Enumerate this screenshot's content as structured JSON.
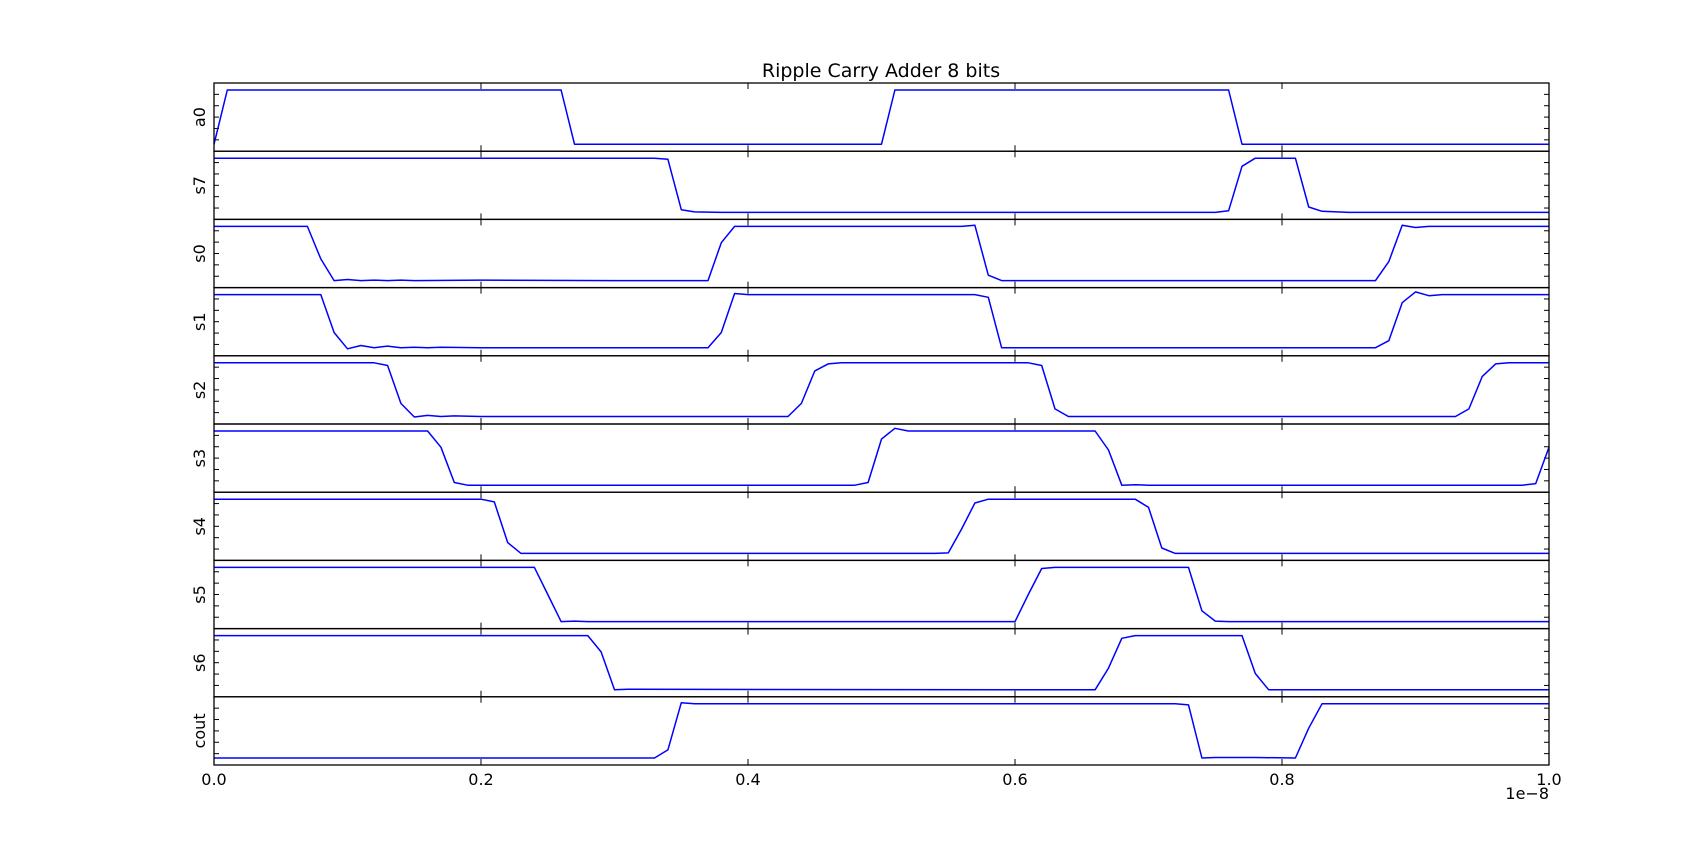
{
  "chart_data": {
    "type": "line",
    "title": "Ripple Carry Adder 8 bits",
    "xlim": [
      0.0,
      1.0
    ],
    "x_ticks": [
      "0.0",
      "0.2",
      "0.4",
      "0.6",
      "0.8",
      "1.0"
    ],
    "x_offset_label": "1e−8",
    "ylim": [
      0,
      1
    ],
    "grid": false,
    "line_color": "#0000ff",
    "series": [
      {
        "name": "a0",
        "points": [
          [
            0,
            0
          ],
          [
            0.01,
            1
          ],
          [
            0.26,
            1
          ],
          [
            0.27,
            0
          ],
          [
            0.5,
            0
          ],
          [
            0.51,
            1
          ],
          [
            0.76,
            1
          ],
          [
            0.77,
            0
          ],
          [
            1.0,
            0
          ]
        ]
      },
      {
        "name": "s7",
        "points": [
          [
            0,
            1
          ],
          [
            0.33,
            1
          ],
          [
            0.34,
            0.98
          ],
          [
            0.35,
            0.05
          ],
          [
            0.36,
            0.01
          ],
          [
            0.38,
            0
          ],
          [
            0.75,
            0
          ],
          [
            0.76,
            0.03
          ],
          [
            0.77,
            0.85
          ],
          [
            0.78,
            1
          ],
          [
            0.81,
            1
          ],
          [
            0.82,
            0.1
          ],
          [
            0.83,
            0.02
          ],
          [
            0.85,
            0
          ],
          [
            1.0,
            0
          ]
        ]
      },
      {
        "name": "s0",
        "points": [
          [
            0,
            1
          ],
          [
            0.07,
            1
          ],
          [
            0.08,
            0.4
          ],
          [
            0.09,
            0
          ],
          [
            0.1,
            0.02
          ],
          [
            0.11,
            0
          ],
          [
            0.12,
            0.01
          ],
          [
            0.13,
            0
          ],
          [
            0.14,
            0.01
          ],
          [
            0.15,
            0
          ],
          [
            0.2,
            0.01
          ],
          [
            0.3,
            0
          ],
          [
            0.37,
            0
          ],
          [
            0.38,
            0.7
          ],
          [
            0.39,
            1
          ],
          [
            0.56,
            1
          ],
          [
            0.57,
            1.02
          ],
          [
            0.58,
            0.1
          ],
          [
            0.59,
            0
          ],
          [
            0.87,
            0
          ],
          [
            0.88,
            0.35
          ],
          [
            0.89,
            1.02
          ],
          [
            0.9,
            0.98
          ],
          [
            0.91,
            1
          ],
          [
            1.0,
            1
          ]
        ]
      },
      {
        "name": "s1",
        "points": [
          [
            0,
            1
          ],
          [
            0.08,
            1
          ],
          [
            0.09,
            0.3
          ],
          [
            0.1,
            0
          ],
          [
            0.11,
            0.06
          ],
          [
            0.12,
            0.02
          ],
          [
            0.13,
            0.05
          ],
          [
            0.14,
            0.02
          ],
          [
            0.15,
            0.03
          ],
          [
            0.16,
            0.02
          ],
          [
            0.17,
            0.03
          ],
          [
            0.2,
            0.02
          ],
          [
            0.3,
            0.02
          ],
          [
            0.37,
            0.02
          ],
          [
            0.38,
            0.3
          ],
          [
            0.39,
            1.02
          ],
          [
            0.4,
            1
          ],
          [
            0.57,
            1
          ],
          [
            0.58,
            0.95
          ],
          [
            0.59,
            0.02
          ],
          [
            0.6,
            0.02
          ],
          [
            0.87,
            0.02
          ],
          [
            0.88,
            0.15
          ],
          [
            0.89,
            0.85
          ],
          [
            0.9,
            1.05
          ],
          [
            0.91,
            0.98
          ],
          [
            0.92,
            1
          ],
          [
            1.0,
            1
          ]
        ]
      },
      {
        "name": "s2",
        "points": [
          [
            0,
            1
          ],
          [
            0.12,
            1
          ],
          [
            0.13,
            0.95
          ],
          [
            0.14,
            0.25
          ],
          [
            0.15,
            0
          ],
          [
            0.16,
            0.03
          ],
          [
            0.17,
            0.01
          ],
          [
            0.18,
            0.02
          ],
          [
            0.2,
            0.01
          ],
          [
            0.3,
            0.01
          ],
          [
            0.42,
            0.01
          ],
          [
            0.43,
            0.01
          ],
          [
            0.44,
            0.25
          ],
          [
            0.45,
            0.85
          ],
          [
            0.46,
            0.98
          ],
          [
            0.47,
            1
          ],
          [
            0.61,
            1
          ],
          [
            0.62,
            0.95
          ],
          [
            0.63,
            0.15
          ],
          [
            0.64,
            0.01
          ],
          [
            0.92,
            0.01
          ],
          [
            0.93,
            0.01
          ],
          [
            0.94,
            0.15
          ],
          [
            0.95,
            0.75
          ],
          [
            0.96,
            0.98
          ],
          [
            0.97,
            1
          ],
          [
            1.0,
            1
          ]
        ]
      },
      {
        "name": "s3",
        "points": [
          [
            0,
            1
          ],
          [
            0.16,
            1
          ],
          [
            0.17,
            0.7
          ],
          [
            0.18,
            0.05
          ],
          [
            0.19,
            0
          ],
          [
            0.2,
            0
          ],
          [
            0.48,
            0
          ],
          [
            0.49,
            0.05
          ],
          [
            0.5,
            0.85
          ],
          [
            0.51,
            1.05
          ],
          [
            0.52,
            1
          ],
          [
            0.53,
            1
          ],
          [
            0.65,
            1
          ],
          [
            0.66,
            1
          ],
          [
            0.67,
            0.65
          ],
          [
            0.68,
            0
          ],
          [
            0.69,
            0.01
          ],
          [
            0.7,
            0
          ],
          [
            0.98,
            0
          ],
          [
            0.99,
            0.03
          ],
          [
            1.0,
            0.7
          ]
        ]
      },
      {
        "name": "s4",
        "points": [
          [
            0,
            1
          ],
          [
            0.2,
            1
          ],
          [
            0.21,
            0.95
          ],
          [
            0.22,
            0.2
          ],
          [
            0.23,
            0
          ],
          [
            0.53,
            0
          ],
          [
            0.54,
            0
          ],
          [
            0.55,
            0.01
          ],
          [
            0.56,
            0.45
          ],
          [
            0.57,
            0.93
          ],
          [
            0.58,
            1
          ],
          [
            0.69,
            1
          ],
          [
            0.7,
            0.85
          ],
          [
            0.71,
            0.1
          ],
          [
            0.72,
            0
          ],
          [
            1.0,
            0
          ]
        ]
      },
      {
        "name": "s5",
        "points": [
          [
            0,
            1
          ],
          [
            0.24,
            1
          ],
          [
            0.24,
            1
          ],
          [
            0.25,
            0.5
          ],
          [
            0.26,
            0
          ],
          [
            0.27,
            0.01
          ],
          [
            0.28,
            0
          ],
          [
            0.6,
            0
          ],
          [
            0.61,
            0.5
          ],
          [
            0.62,
            0.98
          ],
          [
            0.63,
            1
          ],
          [
            0.73,
            1
          ],
          [
            0.74,
            0.2
          ],
          [
            0.75,
            0.01
          ],
          [
            0.76,
            0
          ],
          [
            1.0,
            0
          ]
        ]
      },
      {
        "name": "s6",
        "points": [
          [
            0,
            1
          ],
          [
            0.28,
            1
          ],
          [
            0.29,
            0.7
          ],
          [
            0.3,
            0
          ],
          [
            0.31,
            0.01
          ],
          [
            0.66,
            0
          ],
          [
            0.67,
            0.4
          ],
          [
            0.68,
            0.95
          ],
          [
            0.69,
            1
          ],
          [
            0.77,
            1
          ],
          [
            0.78,
            0.3
          ],
          [
            0.79,
            0
          ],
          [
            1.0,
            0
          ]
        ]
      },
      {
        "name": "cout",
        "points": [
          [
            0,
            0
          ],
          [
            0.33,
            0
          ],
          [
            0.34,
            0.15
          ],
          [
            0.35,
            1.02
          ],
          [
            0.36,
            1
          ],
          [
            0.72,
            1
          ],
          [
            0.73,
            0.98
          ],
          [
            0.74,
            0
          ],
          [
            0.75,
            0.01
          ],
          [
            0.78,
            0.01
          ],
          [
            0.81,
            0
          ],
          [
            0.82,
            0.55
          ],
          [
            0.83,
            1
          ],
          [
            0.84,
            1
          ],
          [
            1.0,
            1
          ]
        ]
      }
    ]
  }
}
